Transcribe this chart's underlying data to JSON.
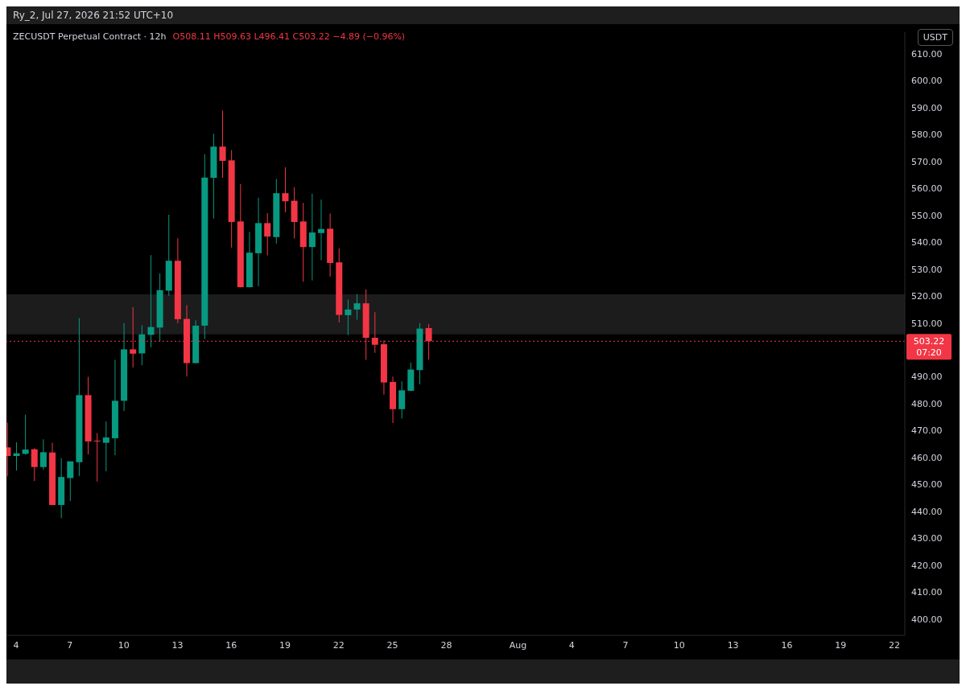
{
  "chart_data": {
    "type": "candlestick",
    "title": "ZECUSDT Perpetual Contract · 12h",
    "subtitle": "O508.11 H509.63 L496.41 C503.22 −4.89 (−0.96%)",
    "ylabel": "USDT",
    "annotations": [
      "Ry_2, Jul 27, 2026 21:52 UTC+10",
      "07:20"
    ],
    "x": [
      "2026-07-03T12:00",
      "2026-07-04T00:00",
      "2026-07-04T12:00",
      "2026-07-05T00:00",
      "2026-07-05T12:00",
      "2026-07-06T00:00",
      "2026-07-06T12:00",
      "2026-07-07T00:00",
      "2026-07-07T12:00",
      "2026-07-08T00:00",
      "2026-07-08T12:00",
      "2026-07-09T00:00",
      "2026-07-09T12:00",
      "2026-07-10T00:00",
      "2026-07-10T12:00",
      "2026-07-11T00:00",
      "2026-07-11T12:00",
      "2026-07-12T00:00",
      "2026-07-12T12:00",
      "2026-07-13T00:00",
      "2026-07-13T12:00",
      "2026-07-14T00:00",
      "2026-07-14T12:00",
      "2026-07-15T00:00",
      "2026-07-15T12:00",
      "2026-07-16T00:00",
      "2026-07-16T12:00",
      "2026-07-17T00:00",
      "2026-07-17T12:00",
      "2026-07-18T00:00",
      "2026-07-18T12:00",
      "2026-07-19T00:00",
      "2026-07-19T12:00",
      "2026-07-20T00:00",
      "2026-07-20T12:00",
      "2026-07-21T00:00",
      "2026-07-21T12:00",
      "2026-07-22T00:00",
      "2026-07-22T12:00",
      "2026-07-23T00:00",
      "2026-07-23T12:00",
      "2026-07-24T00:00",
      "2026-07-24T12:00",
      "2026-07-25T00:00",
      "2026-07-25T12:00",
      "2026-07-26T00:00",
      "2026-07-26T12:00",
      "2026-07-27T00:00"
    ],
    "ohlc": [
      [
        463.8,
        473,
        453,
        460.6
      ],
      [
        460.6,
        465.7,
        455.2,
        461.6
      ],
      [
        461.4,
        476,
        461,
        463
      ],
      [
        463.1,
        463.5,
        451.3,
        456.5
      ],
      [
        456.5,
        466.8,
        455.4,
        462
      ],
      [
        461.9,
        465.5,
        442.3,
        442.4
      ],
      [
        442.4,
        459.8,
        437.5,
        452.8
      ],
      [
        452.4,
        458.6,
        443.9,
        458.6
      ],
      [
        458.3,
        511.8,
        453.2,
        483.2
      ],
      [
        483.2,
        490,
        461.2,
        466
      ],
      [
        466.3,
        469.1,
        451.1,
        466
      ],
      [
        465.5,
        473.4,
        454.9,
        467.5
      ],
      [
        467.2,
        496.3,
        460.9,
        481.1
      ],
      [
        481.1,
        509.9,
        477.3,
        500.2
      ],
      [
        500.2,
        515.9,
        493.5,
        498.6
      ],
      [
        498.7,
        509.2,
        494.3,
        505.8
      ],
      [
        505.6,
        535.2,
        501,
        508.5
      ],
      [
        508.3,
        528.4,
        503.3,
        522.2
      ],
      [
        522,
        550.2,
        520.1,
        533.1
      ],
      [
        533.1,
        541.5,
        509.9,
        511.4
      ],
      [
        511.5,
        516.6,
        490.1,
        495.1
      ],
      [
        495.1,
        511,
        495,
        509
      ],
      [
        509,
        572.7,
        504,
        564
      ],
      [
        563.9,
        580.3,
        548.8,
        575.5
      ],
      [
        575.5,
        588.9,
        563.9,
        570.2
      ],
      [
        570.4,
        574.2,
        538,
        547.5
      ],
      [
        547.7,
        561.6,
        523.2,
        523.3
      ],
      [
        523.3,
        543.8,
        523.2,
        536.1
      ],
      [
        535.9,
        556.5,
        523.6,
        547.1
      ],
      [
        547.1,
        550.8,
        535.1,
        542.1
      ],
      [
        541.9,
        563.5,
        539.5,
        558.2
      ],
      [
        558.2,
        567.8,
        551.1,
        555.2
      ],
      [
        555.4,
        560.4,
        541.4,
        547.5
      ],
      [
        547.7,
        554.6,
        525.3,
        538.2
      ],
      [
        538.2,
        558,
        525.8,
        543.6
      ],
      [
        543.4,
        555.8,
        533.3,
        544.9
      ],
      [
        545,
        550.6,
        527.2,
        532.3
      ],
      [
        532.5,
        537.7,
        510.2,
        513
      ],
      [
        512.9,
        518.7,
        505.5,
        515
      ],
      [
        515,
        520.7,
        511.2,
        517.3
      ],
      [
        517.3,
        522.5,
        496.3,
        504.5
      ],
      [
        504.5,
        514,
        498.9,
        501.9
      ],
      [
        502.1,
        503.5,
        483.4,
        487.9
      ],
      [
        488.1,
        490.1,
        472.8,
        478
      ],
      [
        478,
        488.3,
        474.5,
        485
      ],
      [
        484.8,
        495.3,
        484.7,
        492.7
      ],
      [
        492.5,
        509.9,
        487.2,
        507.9
      ],
      [
        508.11,
        509.63,
        496.41,
        503.22
      ]
    ],
    "colors": [
      "#f23645",
      "#089981",
      "#089981",
      "#f23645",
      "#089981",
      "#f23645",
      "#089981",
      "#089981",
      "#089981",
      "#f23645",
      "#f23645",
      "#089981",
      "#089981",
      "#089981",
      "#f23645",
      "#089981",
      "#089981",
      "#089981",
      "#089981",
      "#f23645",
      "#f23645",
      "#089981",
      "#089981",
      "#089981",
      "#f23645",
      "#f23645",
      "#f23645",
      "#089981",
      "#089981",
      "#f23645",
      "#089981",
      "#f23645",
      "#f23645",
      "#f23645",
      "#089981",
      "#089981",
      "#f23645",
      "#f23645",
      "#089981",
      "#089981",
      "#f23645",
      "#f23645",
      "#f23645",
      "#f23645",
      "#089981",
      "#089981",
      "#089981",
      "#f23645"
    ],
    "xlim": [
      "2026-07-03T11:00",
      "2026-08-22T14:00"
    ],
    "xticks": [
      {
        "value": "2026-07-04T00:00",
        "label": "4"
      },
      {
        "value": "2026-07-07T00:00",
        "label": "7"
      },
      {
        "value": "2026-07-10T00:00",
        "label": "10"
      },
      {
        "value": "2026-07-13T00:00",
        "label": "13"
      },
      {
        "value": "2026-07-16T00:00",
        "label": "16"
      },
      {
        "value": "2026-07-19T00:00",
        "label": "19"
      },
      {
        "value": "2026-07-22T00:00",
        "label": "22"
      },
      {
        "value": "2026-07-25T00:00",
        "label": "25"
      },
      {
        "value": "2026-07-28T00:00",
        "label": "28"
      },
      {
        "value": "2026-08-01T00:00",
        "label": "Aug"
      },
      {
        "value": "2026-08-04T00:00",
        "label": "4"
      },
      {
        "value": "2026-08-07T00:00",
        "label": "7"
      },
      {
        "value": "2026-08-10T00:00",
        "label": "10"
      },
      {
        "value": "2026-08-13T00:00",
        "label": "13"
      },
      {
        "value": "2026-08-16T00:00",
        "label": "16"
      },
      {
        "value": "2026-08-19T00:00",
        "label": "19"
      },
      {
        "value": "2026-08-22T00:00",
        "label": "22"
      }
    ],
    "ylim": [
      394,
      618
    ],
    "yticks": [
      {
        "value": 400,
        "label": "400.00"
      },
      {
        "value": 410,
        "label": "410.00"
      },
      {
        "value": 420,
        "label": "420.00"
      },
      {
        "value": 430,
        "label": "430.00"
      },
      {
        "value": 440,
        "label": "440.00"
      },
      {
        "value": 450,
        "label": "450.00"
      },
      {
        "value": 460,
        "label": "460.00"
      },
      {
        "value": 470,
        "label": "470.00"
      },
      {
        "value": 480,
        "label": "480.00"
      },
      {
        "value": 490,
        "label": "490.00"
      },
      {
        "value": 510,
        "label": "510.00"
      },
      {
        "value": 520,
        "label": "520.00"
      },
      {
        "value": 530,
        "label": "530.00"
      },
      {
        "value": 540,
        "label": "540.00"
      },
      {
        "value": 550,
        "label": "550.00"
      },
      {
        "value": 560,
        "label": "560.00"
      },
      {
        "value": 570,
        "label": "570.00"
      },
      {
        "value": 580,
        "label": "580.00"
      },
      {
        "value": 590,
        "label": "590.00"
      },
      {
        "value": 600,
        "label": "600.00"
      },
      {
        "value": 610,
        "label": "610.00"
      }
    ],
    "ref_lines": [
      {
        "axis": "y",
        "value": 503.22,
        "label": "503.22",
        "color": "#f23645",
        "line_style": "dotted"
      }
    ],
    "bands": [
      {
        "axis": "y",
        "from": 505.8,
        "to": 520.6,
        "color": "#1c1c1c"
      }
    ]
  }
}
